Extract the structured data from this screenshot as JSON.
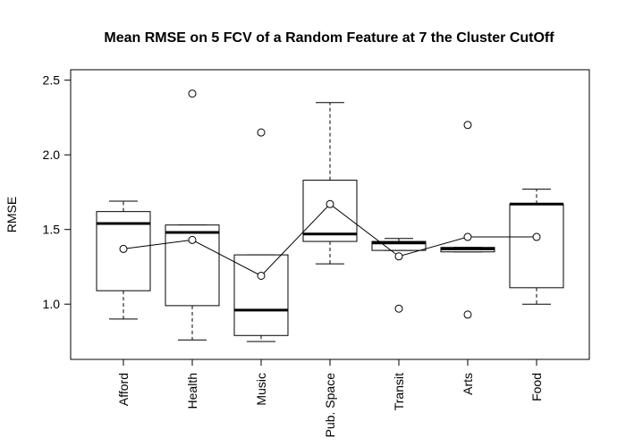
{
  "chart_data": {
    "type": "box",
    "title": "Mean RMSE on 5 FCV of a Random Feature at 7 the Cluster CutOff",
    "xlabel": "",
    "ylabel": "RMSE",
    "ylim": [
      0.63,
      2.57
    ],
    "yticks": [
      "1.0",
      "1.5",
      "2.0",
      "2.5"
    ],
    "categories": [
      "Afford",
      "Health",
      "Music",
      "Pub. Space",
      "Transit",
      "Arts",
      "Food"
    ],
    "boxes": [
      {
        "lower_whisker": 0.9,
        "q1": 1.09,
        "median": 1.54,
        "q3": 1.62,
        "upper_whisker": 1.69,
        "outliers": []
      },
      {
        "lower_whisker": 0.76,
        "q1": 0.99,
        "median": 1.48,
        "q3": 1.53,
        "upper_whisker": 1.53,
        "outliers": [
          2.41
        ]
      },
      {
        "lower_whisker": 0.75,
        "q1": 0.79,
        "median": 0.96,
        "q3": 1.33,
        "upper_whisker": 1.33,
        "outliers": [
          2.15
        ]
      },
      {
        "lower_whisker": 1.27,
        "q1": 1.42,
        "median": 1.47,
        "q3": 1.83,
        "upper_whisker": 2.35,
        "outliers": []
      },
      {
        "lower_whisker": 1.36,
        "q1": 1.36,
        "median": 1.41,
        "q3": 1.42,
        "upper_whisker": 1.44,
        "outliers": [
          0.97
        ]
      },
      {
        "lower_whisker": 1.35,
        "q1": 1.35,
        "median": 1.37,
        "q3": 1.38,
        "upper_whisker": 1.38,
        "outliers": [
          0.93,
          2.2
        ]
      },
      {
        "lower_whisker": 1.0,
        "q1": 1.11,
        "median": 1.67,
        "q3": 1.67,
        "upper_whisker": 1.77,
        "outliers": []
      }
    ],
    "means": [
      1.37,
      1.43,
      1.19,
      1.67,
      1.32,
      1.45,
      1.45
    ],
    "grid": false,
    "legend": "none"
  }
}
